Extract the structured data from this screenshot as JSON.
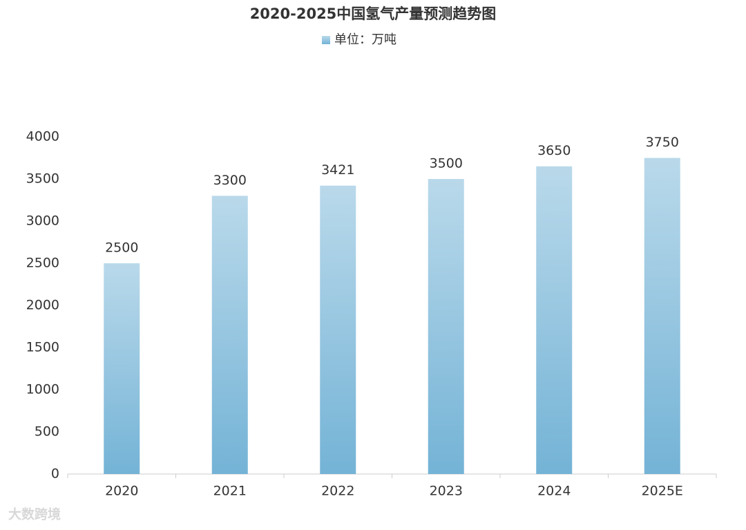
{
  "chart_data": {
    "type": "bar",
    "title": "2020-2025中国氢气产量预测趋势图",
    "categories": [
      "2020",
      "2021",
      "2022",
      "2023",
      "2024",
      "2025E"
    ],
    "series": [
      {
        "name": "单位：万吨",
        "color": "#74b3d6",
        "values": [
          2500,
          3300,
          3421,
          3500,
          3650,
          3750
        ]
      }
    ],
    "ylim": [
      0,
      4000
    ],
    "yticks": [
      0,
      500,
      1000,
      1500,
      2000,
      2500,
      3000,
      3500,
      4000
    ],
    "grid": false,
    "legend": "top",
    "watermark": "大数跨境"
  }
}
